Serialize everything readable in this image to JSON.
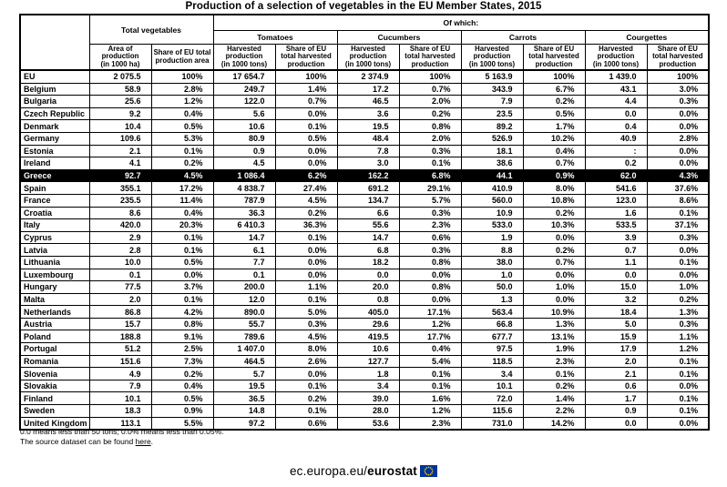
{
  "title": "Production of a selection of vegetables in the EU Member States, 2015",
  "table": {
    "corner_label": "",
    "group_total": "Total vegetables",
    "group_of_which": "Of which:",
    "products": [
      "Tomatoes",
      "Cucumbers",
      "Carrots",
      "Courgettes"
    ],
    "subheaders": {
      "area": "Area of\nproduction\n(in 1000 ha)",
      "share_area": "Share of EU total\nproduction area",
      "harvested": "Harvested\nproduction\n(in 1000 tons)",
      "share_harvested": "Share of EU\ntotal harvested\nproduction"
    },
    "rows": [
      {
        "country": "EU",
        "highlight": false,
        "values": [
          "2 075.5",
          "100%",
          "17 654.7",
          "100%",
          "2 374.9",
          "100%",
          "5 163.9",
          "100%",
          "1 439.0",
          "100%"
        ]
      },
      {
        "country": "Belgium",
        "highlight": false,
        "values": [
          "58.9",
          "2.8%",
          "249.7",
          "1.4%",
          "17.2",
          "0.7%",
          "343.9",
          "6.7%",
          "43.1",
          "3.0%"
        ]
      },
      {
        "country": "Bulgaria",
        "highlight": false,
        "values": [
          "25.6",
          "1.2%",
          "122.0",
          "0.7%",
          "46.5",
          "2.0%",
          "7.9",
          "0.2%",
          "4.4",
          "0.3%"
        ]
      },
      {
        "country": "Czech Republic",
        "highlight": false,
        "values": [
          "9.2",
          "0.4%",
          "5.6",
          "0.0%",
          "3.6",
          "0.2%",
          "23.5",
          "0.5%",
          "0.0",
          "0.0%"
        ]
      },
      {
        "country": "Denmark",
        "highlight": false,
        "values": [
          "10.4",
          "0.5%",
          "10.6",
          "0.1%",
          "19.5",
          "0.8%",
          "89.2",
          "1.7%",
          "0.4",
          "0.0%"
        ]
      },
      {
        "country": "Germany",
        "highlight": false,
        "values": [
          "109.6",
          "5.3%",
          "80.9",
          "0.5%",
          "48.4",
          "2.0%",
          "526.9",
          "10.2%",
          "40.9",
          "2.8%"
        ]
      },
      {
        "country": "Estonia",
        "highlight": false,
        "values": [
          "2.1",
          "0.1%",
          "0.9",
          "0.0%",
          "7.8",
          "0.3%",
          "18.1",
          "0.4%",
          ":",
          "0.0%"
        ]
      },
      {
        "country": "Ireland",
        "highlight": false,
        "values": [
          "4.1",
          "0.2%",
          "4.5",
          "0.0%",
          "3.0",
          "0.1%",
          "38.6",
          "0.7%",
          "0.2",
          "0.0%"
        ]
      },
      {
        "country": "Greece",
        "highlight": true,
        "values": [
          "92.7",
          "4.5%",
          "1 086.4",
          "6.2%",
          "162.2",
          "6.8%",
          "44.1",
          "0.9%",
          "62.0",
          "4.3%"
        ]
      },
      {
        "country": "Spain",
        "highlight": false,
        "values": [
          "355.1",
          "17.2%",
          "4 838.7",
          "27.4%",
          "691.2",
          "29.1%",
          "410.9",
          "8.0%",
          "541.6",
          "37.6%"
        ]
      },
      {
        "country": "France",
        "highlight": false,
        "values": [
          "235.5",
          "11.4%",
          "787.9",
          "4.5%",
          "134.7",
          "5.7%",
          "560.0",
          "10.8%",
          "123.0",
          "8.6%"
        ]
      },
      {
        "country": "Croatia",
        "highlight": false,
        "values": [
          "8.6",
          "0.4%",
          "36.3",
          "0.2%",
          "6.6",
          "0.3%",
          "10.9",
          "0.2%",
          "1.6",
          "0.1%"
        ]
      },
      {
        "country": "Italy",
        "highlight": false,
        "values": [
          "420.0",
          "20.3%",
          "6 410.3",
          "36.3%",
          "55.6",
          "2.3%",
          "533.0",
          "10.3%",
          "533.5",
          "37.1%"
        ]
      },
      {
        "country": "Cyprus",
        "highlight": false,
        "values": [
          "2.9",
          "0.1%",
          "14.7",
          "0.1%",
          "14.7",
          "0.6%",
          "1.9",
          "0.0%",
          "3.9",
          "0.3%"
        ]
      },
      {
        "country": "Latvia",
        "highlight": false,
        "values": [
          "2.8",
          "0.1%",
          "6.1",
          "0.0%",
          "6.8",
          "0.3%",
          "8.8",
          "0.2%",
          "0.7",
          "0.0%"
        ]
      },
      {
        "country": "Lithuania",
        "highlight": false,
        "values": [
          "10.0",
          "0.5%",
          "7.7",
          "0.0%",
          "18.2",
          "0.8%",
          "38.0",
          "0.7%",
          "1.1",
          "0.1%"
        ]
      },
      {
        "country": "Luxembourg",
        "highlight": false,
        "values": [
          "0.1",
          "0.0%",
          "0.1",
          "0.0%",
          "0.0",
          "0.0%",
          "1.0",
          "0.0%",
          "0.0",
          "0.0%"
        ]
      },
      {
        "country": "Hungary",
        "highlight": false,
        "values": [
          "77.5",
          "3.7%",
          "200.0",
          "1.1%",
          "20.0",
          "0.8%",
          "50.0",
          "1.0%",
          "15.0",
          "1.0%"
        ]
      },
      {
        "country": "Malta",
        "highlight": false,
        "values": [
          "2.0",
          "0.1%",
          "12.0",
          "0.1%",
          "0.8",
          "0.0%",
          "1.3",
          "0.0%",
          "3.2",
          "0.2%"
        ]
      },
      {
        "country": "Netherlands",
        "highlight": false,
        "values": [
          "86.8",
          "4.2%",
          "890.0",
          "5.0%",
          "405.0",
          "17.1%",
          "563.4",
          "10.9%",
          "18.4",
          "1.3%"
        ]
      },
      {
        "country": "Austria",
        "highlight": false,
        "values": [
          "15.7",
          "0.8%",
          "55.7",
          "0.3%",
          "29.6",
          "1.2%",
          "66.8",
          "1.3%",
          "5.0",
          "0.3%"
        ]
      },
      {
        "country": "Poland",
        "highlight": false,
        "values": [
          "188.8",
          "9.1%",
          "789.6",
          "4.5%",
          "419.5",
          "17.7%",
          "677.7",
          "13.1%",
          "15.9",
          "1.1%"
        ]
      },
      {
        "country": "Portugal",
        "highlight": false,
        "values": [
          "51.2",
          "2.5%",
          "1 407.0",
          "8.0%",
          "10.6",
          "0.4%",
          "97.5",
          "1.9%",
          "17.9",
          "1.2%"
        ]
      },
      {
        "country": "Romania",
        "highlight": false,
        "values": [
          "151.6",
          "7.3%",
          "464.5",
          "2.6%",
          "127.7",
          "5.4%",
          "118.5",
          "2.3%",
          "2.0",
          "0.1%"
        ]
      },
      {
        "country": "Slovenia",
        "highlight": false,
        "values": [
          "4.9",
          "0.2%",
          "5.7",
          "0.0%",
          "1.8",
          "0.1%",
          "3.4",
          "0.1%",
          "2.1",
          "0.1%"
        ]
      },
      {
        "country": "Slovakia",
        "highlight": false,
        "values": [
          "7.9",
          "0.4%",
          "19.5",
          "0.1%",
          "3.4",
          "0.1%",
          "10.1",
          "0.2%",
          "0.6",
          "0.0%"
        ]
      },
      {
        "country": "Finland",
        "highlight": false,
        "values": [
          "10.1",
          "0.5%",
          "36.5",
          "0.2%",
          "39.0",
          "1.6%",
          "72.0",
          "1.4%",
          "1.7",
          "0.1%"
        ]
      },
      {
        "country": "Sweden",
        "highlight": false,
        "values": [
          "18.3",
          "0.9%",
          "14.8",
          "0.1%",
          "28.0",
          "1.2%",
          "115.6",
          "2.2%",
          "0.9",
          "0.1%"
        ]
      },
      {
        "country": "United Kingdom",
        "highlight": false,
        "values": [
          "113.1",
          "5.5%",
          "97.2",
          "0.6%",
          "53.6",
          "2.3%",
          "731.0",
          "14.2%",
          "0.0",
          "0.0%"
        ]
      }
    ]
  },
  "footnotes": {
    "line1": "0.0 means less than 50 tons; 0.0% means less than 0.05%.",
    "line2_prefix": "The source dataset can be found ",
    "line2_link": "here",
    "line2_suffix": "."
  },
  "footer": {
    "url_prefix": "ec.europa.eu/",
    "url_bold": "eurostat"
  },
  "colors": {
    "highlight_bg": "#000000",
    "highlight_text": "#ffffff",
    "border": "#000000",
    "footer_gray": "#8a8a8a",
    "footer_navy": "#23425f",
    "flag_blue": "#003399",
    "flag_star_yellow": "#ffcc00"
  }
}
